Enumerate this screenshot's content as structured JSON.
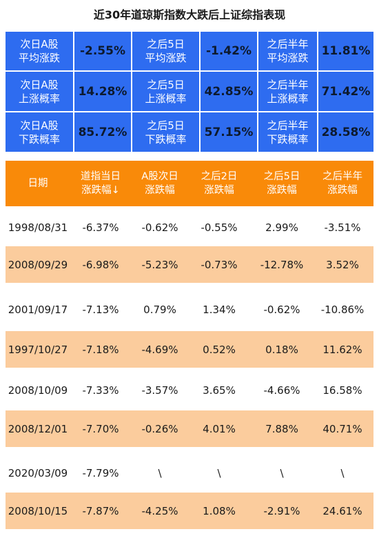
{
  "title": "近30年道琼斯指数大跌后上证综指表现",
  "summary": [
    [
      {
        "label": "次日A股\n平均涨跌",
        "value": "-2.55%"
      },
      {
        "label": "之后5日\n平均涨跌",
        "value": "-1.42%"
      },
      {
        "label": "之后半年\n平均涨跌",
        "value": "11.81%"
      }
    ],
    [
      {
        "label": "次日A股\n上涨概率",
        "value": "14.28%"
      },
      {
        "label": "之后5日\n上涨概率",
        "value": "42.85%"
      },
      {
        "label": "之后半年\n上涨概率",
        "value": "71.42%"
      }
    ],
    [
      {
        "label": "次日A股\n下跌概率",
        "value": "85.72%"
      },
      {
        "label": "之后5日\n下跌概率",
        "value": "57.15%"
      },
      {
        "label": "之后半年\n下跌概率",
        "value": "28.58%"
      }
    ]
  ],
  "table": {
    "headers": [
      "日期",
      "道指当日\n涨跌幅↓",
      "A股次日\n涨跌幅",
      "之后2日\n涨跌幅",
      "之后5日\n涨跌幅",
      "之后半年\n涨跌幅"
    ],
    "rows": [
      [
        "1998/08/31",
        "-6.37%",
        "-0.62%",
        "-0.55%",
        "2.99%",
        "-3.51%"
      ],
      [
        "2008/09/29",
        "-6.98%",
        "-5.23%",
        "-0.73%",
        "-12.78%",
        "3.52%"
      ],
      [
        "2001/09/17",
        "-7.13%",
        "0.79%",
        "1.34%",
        "-0.62%",
        "-10.86%"
      ],
      [
        "1997/10/27",
        "-7.18%",
        "-4.69%",
        "0.52%",
        "0.18%",
        "11.62%"
      ],
      [
        "2008/10/09",
        "-7.33%",
        "-3.57%",
        "3.65%",
        "-4.66%",
        "16.58%"
      ],
      [
        "2008/12/01",
        "-7.70%",
        "-0.26%",
        "4.01%",
        "7.88%",
        "40.71%"
      ],
      [
        "2020/03/09",
        "-7.79%",
        "\\",
        "\\",
        "\\",
        "\\"
      ],
      [
        "2008/10/15",
        "-7.87%",
        "-4.25%",
        "1.08%",
        "-2.91%",
        "24.61%"
      ]
    ]
  },
  "colors": {
    "summary_bg": "#2e6cf0",
    "header_bg": "#f98a09",
    "row_shade": "#fbcc9d"
  }
}
